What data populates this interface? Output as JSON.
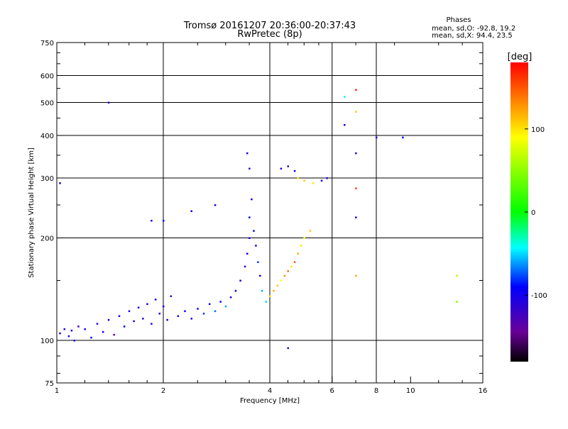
{
  "chart_data": {
    "type": "scatter",
    "title": "Tromsø 20161207 20:36:00-20:37:43",
    "subtitle": "RwPretec (8p)",
    "stats": {
      "heading": "Phases",
      "line_o": "mean, sd,O: -92.8, 19.2",
      "line_x": "mean, sd,X:  94.4, 23.5"
    },
    "xlabel": "Frequency [MHz]",
    "ylabel": "Stationary phase Virtual Height [km]",
    "x_scale": "log",
    "y_scale": "log",
    "xlim": [
      1,
      16
    ],
    "ylim": [
      75,
      750
    ],
    "x_ticks": [
      1,
      2,
      4,
      6,
      8,
      10,
      16
    ],
    "x_tick_labels": [
      "1",
      "2",
      "4",
      "6",
      "8",
      "10",
      "16"
    ],
    "x_grid": [
      2,
      4,
      6,
      8
    ],
    "y_ticks": [
      75,
      100,
      200,
      300,
      400,
      500,
      600,
      750
    ],
    "y_tick_labels": [
      "75",
      "100",
      "200",
      "300",
      "400",
      "500",
      "600",
      "750"
    ],
    "y_grid": [
      100,
      200,
      300,
      400,
      500,
      600
    ],
    "grid": true,
    "colorbar": {
      "label": "[deg]",
      "range": [
        -180,
        180
      ],
      "ticks": [
        100,
        0,
        -100
      ],
      "tick_labels": [
        "100",
        "0",
        "-100"
      ]
    },
    "points": [
      {
        "f": 1.02,
        "h": 105,
        "p": -100
      },
      {
        "f": 1.05,
        "h": 108,
        "p": -110
      },
      {
        "f": 1.08,
        "h": 103,
        "p": -95
      },
      {
        "f": 1.1,
        "h": 107,
        "p": -105
      },
      {
        "f": 1.12,
        "h": 100,
        "p": -100
      },
      {
        "f": 1.15,
        "h": 110,
        "p": -120
      },
      {
        "f": 1.2,
        "h": 108,
        "p": -100
      },
      {
        "f": 1.25,
        "h": 102,
        "p": -90
      },
      {
        "f": 1.3,
        "h": 112,
        "p": -110
      },
      {
        "f": 1.35,
        "h": 106,
        "p": -100
      },
      {
        "f": 1.4,
        "h": 115,
        "p": -100
      },
      {
        "f": 1.45,
        "h": 104,
        "p": -130
      },
      {
        "f": 1.5,
        "h": 118,
        "p": -100
      },
      {
        "f": 1.55,
        "h": 110,
        "p": -90
      },
      {
        "f": 1.6,
        "h": 122,
        "p": -105
      },
      {
        "f": 1.65,
        "h": 114,
        "p": -100
      },
      {
        "f": 1.7,
        "h": 125,
        "p": -95
      },
      {
        "f": 1.75,
        "h": 116,
        "p": -110
      },
      {
        "f": 1.8,
        "h": 128,
        "p": -100
      },
      {
        "f": 1.85,
        "h": 112,
        "p": -100
      },
      {
        "f": 1.9,
        "h": 132,
        "p": -90
      },
      {
        "f": 1.95,
        "h": 120,
        "p": -105
      },
      {
        "f": 2.0,
        "h": 126,
        "p": -100
      },
      {
        "f": 2.05,
        "h": 115,
        "p": -95
      },
      {
        "f": 2.1,
        "h": 135,
        "p": -110
      },
      {
        "f": 2.2,
        "h": 118,
        "p": -100
      },
      {
        "f": 2.3,
        "h": 122,
        "p": -95
      },
      {
        "f": 2.4,
        "h": 116,
        "p": -100
      },
      {
        "f": 2.5,
        "h": 124,
        "p": -90
      },
      {
        "f": 2.6,
        "h": 120,
        "p": -80
      },
      {
        "f": 2.7,
        "h": 128,
        "p": -100
      },
      {
        "f": 2.8,
        "h": 122,
        "p": -70
      },
      {
        "f": 2.9,
        "h": 130,
        "p": -100
      },
      {
        "f": 3.0,
        "h": 126,
        "p": -60
      },
      {
        "f": 3.1,
        "h": 134,
        "p": -100
      },
      {
        "f": 3.2,
        "h": 140,
        "p": -90
      },
      {
        "f": 3.3,
        "h": 150,
        "p": -100
      },
      {
        "f": 3.4,
        "h": 165,
        "p": -110
      },
      {
        "f": 3.45,
        "h": 180,
        "p": -100
      },
      {
        "f": 3.5,
        "h": 200,
        "p": -100
      },
      {
        "f": 3.5,
        "h": 230,
        "p": -95
      },
      {
        "f": 3.55,
        "h": 260,
        "p": -100
      },
      {
        "f": 3.6,
        "h": 210,
        "p": -90
      },
      {
        "f": 3.65,
        "h": 190,
        "p": -100
      },
      {
        "f": 3.7,
        "h": 170,
        "p": -80
      },
      {
        "f": 3.75,
        "h": 155,
        "p": -100
      },
      {
        "f": 3.8,
        "h": 140,
        "p": -60
      },
      {
        "f": 3.9,
        "h": 130,
        "p": -50
      },
      {
        "f": 3.45,
        "h": 355,
        "p": -100
      },
      {
        "f": 3.5,
        "h": 320,
        "p": -110
      },
      {
        "f": 4.0,
        "h": 135,
        "p": 100
      },
      {
        "f": 4.1,
        "h": 140,
        "p": 120
      },
      {
        "f": 4.2,
        "h": 145,
        "p": 110
      },
      {
        "f": 4.3,
        "h": 150,
        "p": 90
      },
      {
        "f": 4.4,
        "h": 155,
        "p": 130
      },
      {
        "f": 4.5,
        "h": 160,
        "p": 140
      },
      {
        "f": 4.6,
        "h": 165,
        "p": 100
      },
      {
        "f": 4.7,
        "h": 170,
        "p": 150
      },
      {
        "f": 4.8,
        "h": 180,
        "p": 120
      },
      {
        "f": 4.9,
        "h": 190,
        "p": 100
      },
      {
        "f": 5.0,
        "h": 200,
        "p": 90
      },
      {
        "f": 5.2,
        "h": 210,
        "p": 110
      },
      {
        "f": 4.3,
        "h": 320,
        "p": -100
      },
      {
        "f": 4.5,
        "h": 325,
        "p": -110
      },
      {
        "f": 4.7,
        "h": 315,
        "p": -90
      },
      {
        "f": 4.8,
        "h": 300,
        "p": 100
      },
      {
        "f": 5.0,
        "h": 295,
        "p": 110
      },
      {
        "f": 5.3,
        "h": 290,
        "p": 100
      },
      {
        "f": 5.6,
        "h": 295,
        "p": -100
      },
      {
        "f": 5.8,
        "h": 300,
        "p": -110
      },
      {
        "f": 6.5,
        "h": 520,
        "p": -40
      },
      {
        "f": 7.0,
        "h": 545,
        "p": 170
      },
      {
        "f": 7.0,
        "h": 470,
        "p": 110
      },
      {
        "f": 6.5,
        "h": 430,
        "p": -100
      },
      {
        "f": 7.0,
        "h": 355,
        "p": -110
      },
      {
        "f": 7.0,
        "h": 280,
        "p": 160
      },
      {
        "f": 7.0,
        "h": 230,
        "p": -100
      },
      {
        "f": 8.0,
        "h": 395,
        "p": -110
      },
      {
        "f": 9.5,
        "h": 395,
        "p": -90
      },
      {
        "f": 1.4,
        "h": 500,
        "p": -110
      },
      {
        "f": 1.02,
        "h": 290,
        "p": -100
      },
      {
        "f": 1.85,
        "h": 225,
        "p": -100
      },
      {
        "f": 2.0,
        "h": 225,
        "p": -90
      },
      {
        "f": 2.4,
        "h": 240,
        "p": -100
      },
      {
        "f": 2.8,
        "h": 250,
        "p": -95
      },
      {
        "f": 4.5,
        "h": 95,
        "p": -110
      },
      {
        "f": 13.5,
        "h": 155,
        "p": 60
      },
      {
        "f": 13.5,
        "h": 130,
        "p": 40
      },
      {
        "f": 7.0,
        "h": 155,
        "p": 120
      }
    ]
  }
}
